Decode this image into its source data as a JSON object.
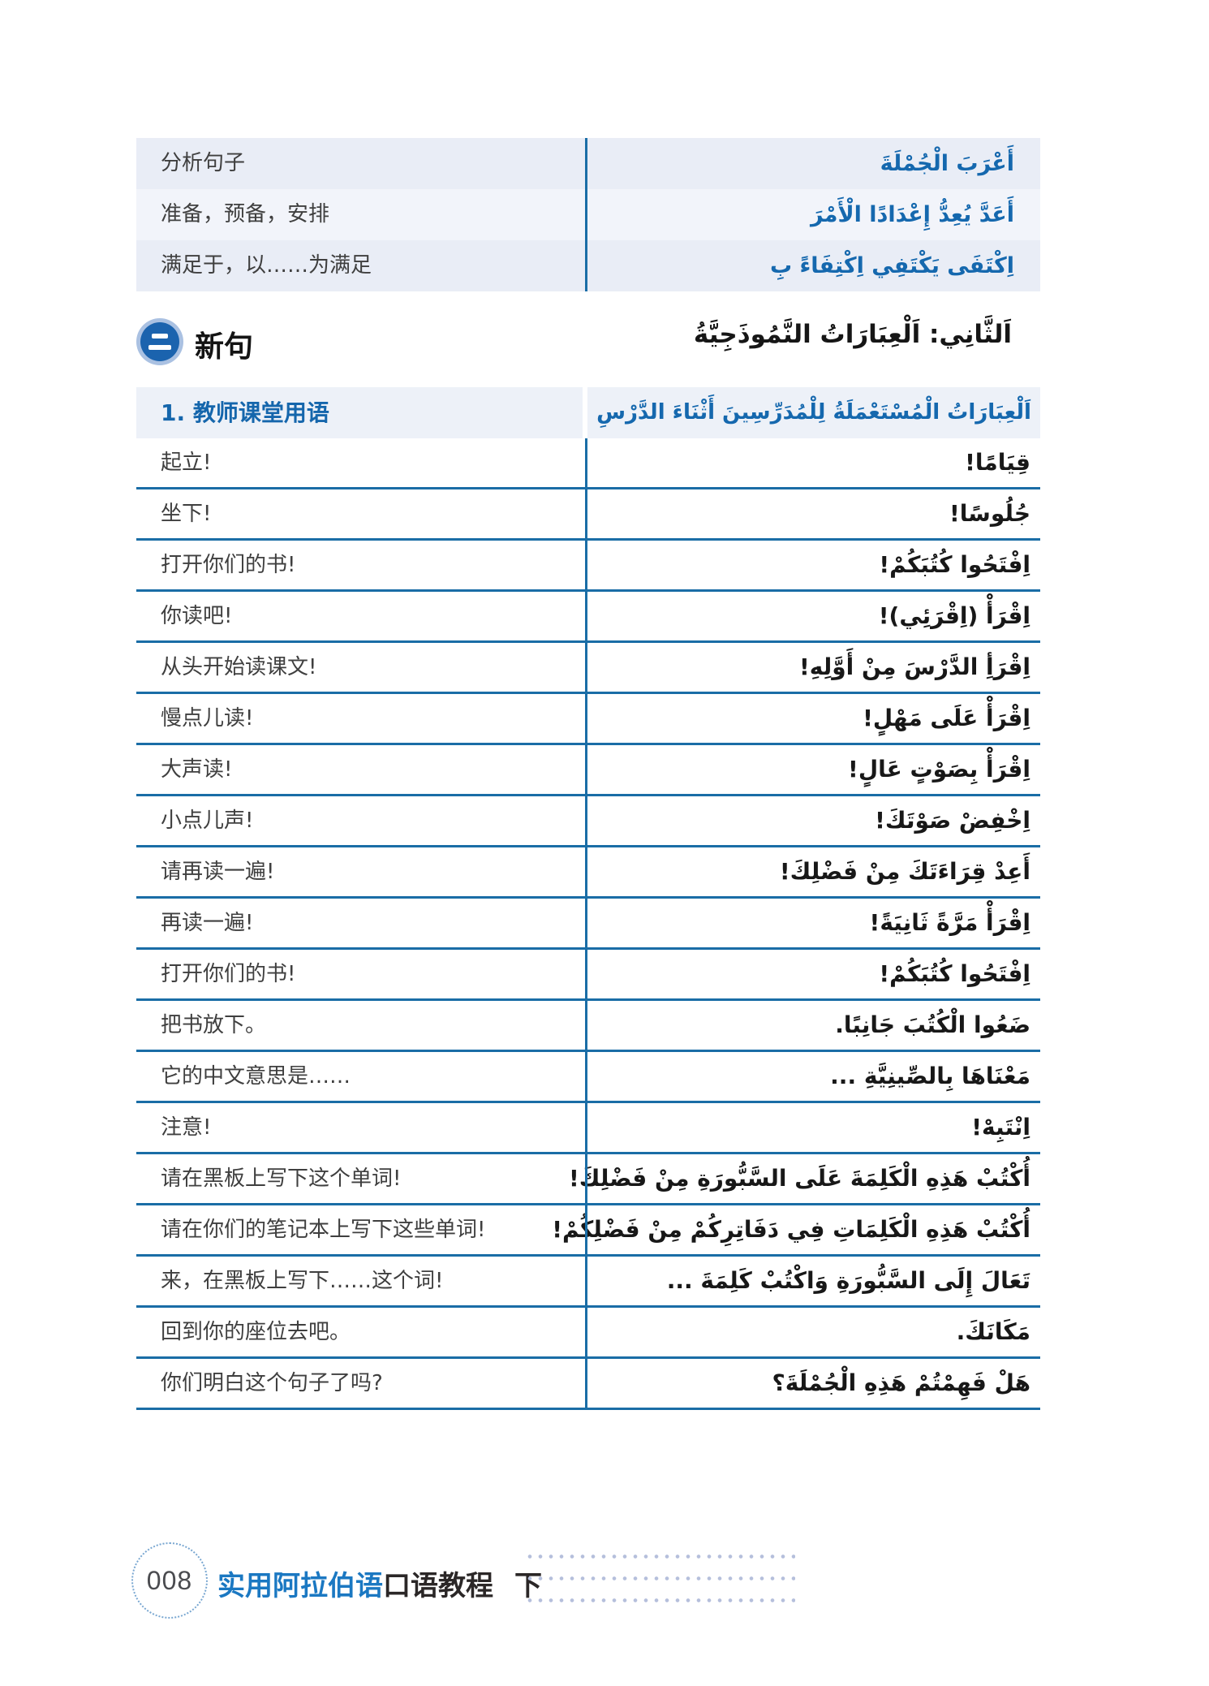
{
  "colors": {
    "accent_blue": "#1568ae",
    "table_line_blue": "#1a6da6",
    "row_stripe": "#e9edf6",
    "header_band": "#edf1f8",
    "footer_title_blue": "#1b78c2",
    "dots_decoration": "#b5bfdc"
  },
  "icons": {
    "section_badge": "circled-two-icon"
  },
  "top_table": {
    "rows": [
      {
        "cn": "分析句子",
        "ar": "أَعْرَبَ الْجُمْلَةَ"
      },
      {
        "cn": "准备，预备，安排",
        "ar": "أَعَدَّ يُعِدُّ إِعْدَادًا الْأَمْرَ"
      },
      {
        "cn": "满足于，以……为满足",
        "ar": "اِكْتَفَى يَكْتَفِي اِكْتِفَاءً بِ"
      }
    ]
  },
  "section": {
    "badge_glyph": "二",
    "title_cn": "新句",
    "title_ar": "اَلثَّانِي: اَلْعِبَارَاتُ النَّمُوذَجِيَّةُ"
  },
  "phrase_table": {
    "header": {
      "cn": "1. 教师课堂用语",
      "ar": "اَلْعِبَارَاتُ الْمُسْتَعْمَلَةُ لِلْمُدَرِّسِينَ أَثْنَاءَ الدَّرْسِ"
    },
    "rows": [
      {
        "cn": "起立!",
        "ar": "قِيَامًا!"
      },
      {
        "cn": "坐下!",
        "ar": "جُلُوسًا!"
      },
      {
        "cn": "打开你们的书!",
        "ar": "اِفْتَحُوا كُتُبَكُمْ!"
      },
      {
        "cn": "你读吧!",
        "ar": "اِقْرَأْ (اِقْرَئِي)!"
      },
      {
        "cn": "从头开始读课文!",
        "ar": "اِقْرَأِ الدَّرْسَ مِنْ أَوَّلِهِ!"
      },
      {
        "cn": "慢点儿读!",
        "ar": "اِقْرَأْ عَلَى مَهْلٍ!"
      },
      {
        "cn": "大声读!",
        "ar": "اِقْرَأْ بِصَوْتٍ عَالٍ!"
      },
      {
        "cn": "小点儿声!",
        "ar": "اِخْفِضْ صَوْتَكَ!"
      },
      {
        "cn": "请再读一遍!",
        "ar": "أَعِدْ قِرَاءَتَكَ مِنْ فَضْلِكَ!"
      },
      {
        "cn": "再读一遍!",
        "ar": "اِقْرَأْ مَرَّةً ثَانِيَةً!"
      },
      {
        "cn": "打开你们的书!",
        "ar": "اِفْتَحُوا كُتُبَكُمْ!"
      },
      {
        "cn": "把书放下。",
        "ar": "ضَعُوا الْكُتُبَ جَانِبًا."
      },
      {
        "cn": "它的中文意思是……",
        "ar": "مَعْنَاهَا بِالصِّينِيَّةِ ..."
      },
      {
        "cn": "注意!",
        "ar": "اِنْتَبِهْ!"
      },
      {
        "cn": "请在黑板上写下这个单词!",
        "ar": "أُكْتُبْ هَذِهِ الْكَلِمَةَ عَلَى السَّبُّورَةِ مِنْ فَضْلِكَ!"
      },
      {
        "cn": "请在你们的笔记本上写下这些单词!",
        "ar": "أُكْتُبْ هَذِهِ الْكَلِمَاتِ فِي دَفَاتِرِكُمْ مِنْ فَضْلِكُمْ!"
      },
      {
        "cn": "来，在黑板上写下……这个词!",
        "ar": "تَعَالَ إِلَى السَّبُّورَةِ وَاكْتُبْ كَلِمَةَ ..."
      },
      {
        "cn": "回到你的座位去吧。",
        "ar": "مَكَانَكَ."
      },
      {
        "cn": "你们明白这个句子了吗?",
        "ar": "هَلْ فَهِمْتُمْ هَذِهِ الْجُمْلَةَ؟"
      }
    ]
  },
  "footer": {
    "page_number": "008",
    "title_blue": "实用阿拉伯语",
    "title_dark": "口语教程",
    "volume": "下"
  }
}
